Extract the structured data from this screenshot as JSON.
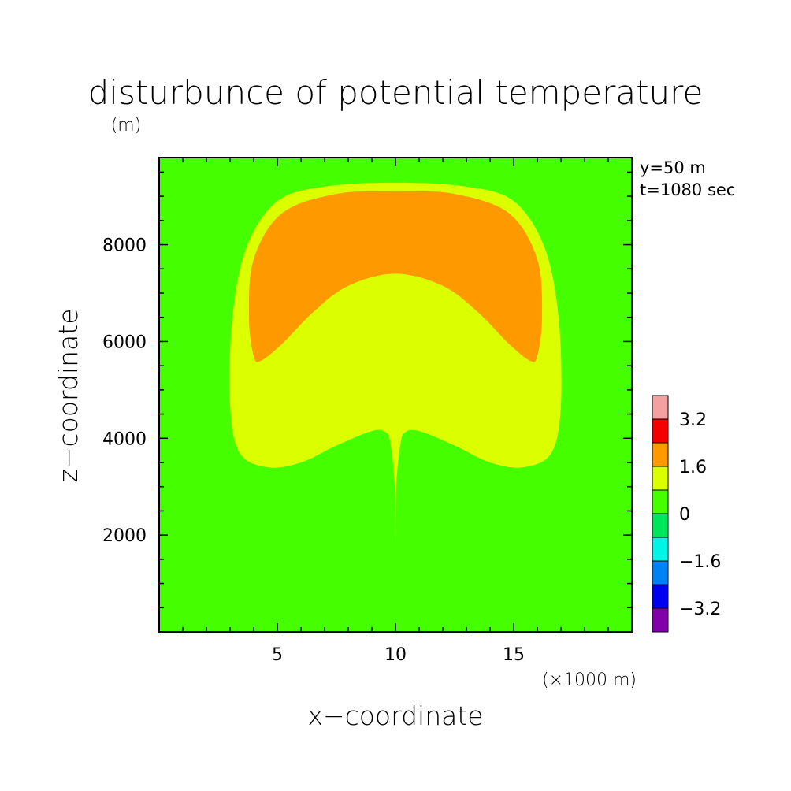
{
  "chart_data": {
    "type": "heatmap",
    "title": "disturbunce of potential temperature",
    "units": "(m)",
    "xlabel": "x−coordinate",
    "ylabel": "z−coordinate",
    "x_units": "(×1000 m)",
    "info": [
      "y=50  m",
      "t=1080 sec"
    ],
    "xlim": [
      0,
      20
    ],
    "ylim": [
      0,
      9800
    ],
    "x_ticks": [
      {
        "value": 5,
        "label": "5"
      },
      {
        "value": 10,
        "label": "10"
      },
      {
        "value": 15,
        "label": "15"
      }
    ],
    "y_ticks": [
      {
        "value": 2000,
        "label": "2000"
      },
      {
        "value": 4000,
        "label": "4000"
      },
      {
        "value": 6000,
        "label": "6000"
      },
      {
        "value": 8000,
        "label": "8000"
      }
    ],
    "grid": false,
    "legend_placement": "right",
    "colorbar": {
      "levels": [
        {
          "range": [
            3.2,
            4.0
          ],
          "color": "#f5a0a0"
        },
        {
          "range": [
            2.4,
            3.2
          ],
          "color": "#f50000"
        },
        {
          "range": [
            1.6,
            2.4
          ],
          "color": "#ff9900"
        },
        {
          "range": [
            0.8,
            1.6
          ],
          "color": "#dcff00"
        },
        {
          "range": [
            0.0,
            0.8
          ],
          "color": "#45ff00"
        },
        {
          "range": [
            -0.8,
            0.0
          ],
          "color": "#00e65a"
        },
        {
          "range": [
            -1.6,
            -0.8
          ],
          "color": "#00f5e6"
        },
        {
          "range": [
            -2.4,
            -1.6
          ],
          "color": "#0082f5"
        },
        {
          "range": [
            -3.2,
            -2.4
          ],
          "color": "#0000f0"
        },
        {
          "range": [
            -4.0,
            -3.2
          ],
          "color": "#8200aa"
        }
      ],
      "labels": [
        {
          "value": 3.2,
          "label": "3.2"
        },
        {
          "value": 1.6,
          "label": "1.6"
        },
        {
          "value": 0,
          "label": "0"
        },
        {
          "value": -1.6,
          "label": "−1.6"
        },
        {
          "value": -3.2,
          "label": "−3.2"
        }
      ]
    },
    "background_level": "0 to 0.8",
    "contour_regions": [
      {
        "level": "0.8 to 1.6",
        "color": "#dcff00",
        "outline": [
          [
            10.0,
            1900
          ],
          [
            10.03,
            3000
          ],
          [
            10.2,
            3850
          ],
          [
            10.4,
            4120
          ],
          [
            11.0,
            4150
          ],
          [
            12.5,
            3850
          ],
          [
            14.0,
            3500
          ],
          [
            15.4,
            3400
          ],
          [
            16.6,
            3700
          ],
          [
            17.0,
            4700
          ],
          [
            16.9,
            6500
          ],
          [
            16.3,
            7950
          ],
          [
            15.0,
            8900
          ],
          [
            13.0,
            9200
          ],
          [
            10.0,
            9280
          ],
          [
            7.0,
            9200
          ],
          [
            5.0,
            8900
          ],
          [
            3.7,
            7950
          ],
          [
            3.1,
            6500
          ],
          [
            3.0,
            4700
          ],
          [
            3.4,
            3700
          ],
          [
            4.6,
            3400
          ],
          [
            6.0,
            3500
          ],
          [
            7.5,
            3850
          ],
          [
            9.0,
            4150
          ],
          [
            9.6,
            4120
          ],
          [
            9.8,
            3850
          ],
          [
            9.97,
            3000
          ]
        ]
      },
      {
        "level": "1.6 to 2.4",
        "color": "#ff9900",
        "outline": [
          [
            4.0,
            5700
          ],
          [
            4.3,
            5600
          ],
          [
            5.2,
            5950
          ],
          [
            6.5,
            6600
          ],
          [
            8.0,
            7150
          ],
          [
            10.0,
            7400
          ],
          [
            12.0,
            7150
          ],
          [
            13.5,
            6600
          ],
          [
            14.8,
            5950
          ],
          [
            15.7,
            5600
          ],
          [
            16.0,
            5700
          ],
          [
            16.2,
            6500
          ],
          [
            16.0,
            7700
          ],
          [
            14.8,
            8650
          ],
          [
            12.5,
            9050
          ],
          [
            10.0,
            9100
          ],
          [
            7.5,
            9050
          ],
          [
            5.2,
            8650
          ],
          [
            4.0,
            7700
          ],
          [
            3.8,
            6500
          ]
        ]
      }
    ]
  }
}
